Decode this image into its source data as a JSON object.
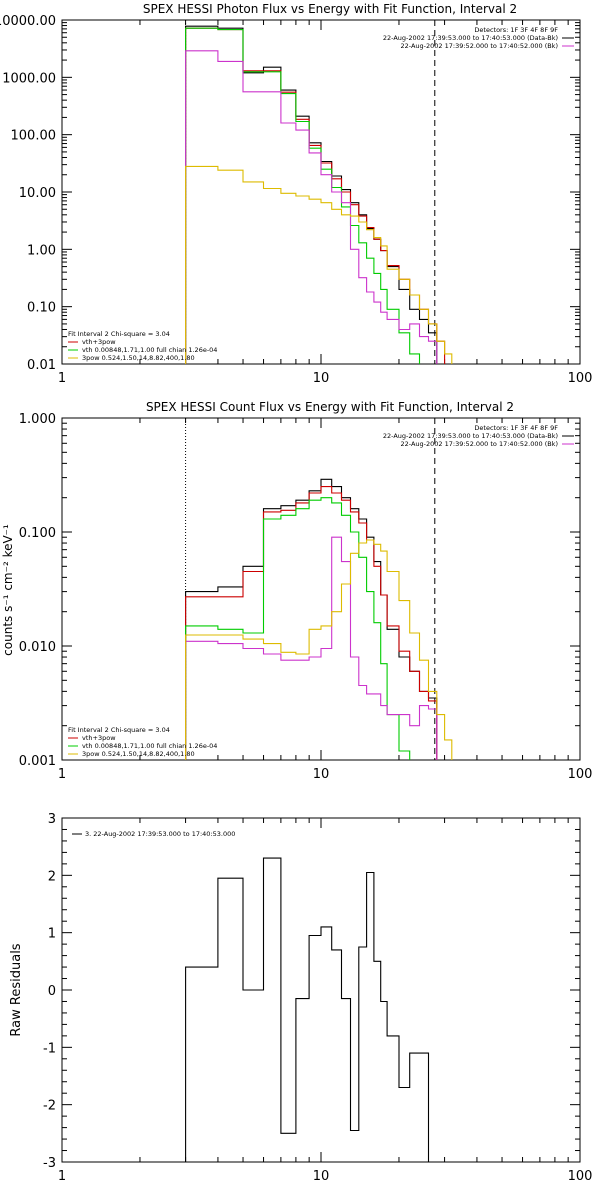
{
  "chart_data": [
    {
      "type": "line",
      "title": "SPEX HESSI Photon Flux vs Energy with Fit Function, Interval 2",
      "xscale": "log",
      "yscale": "log",
      "xlim": [
        1,
        100
      ],
      "ylim": [
        0.01,
        10000
      ],
      "x_ticks": [
        1,
        10,
        100
      ],
      "x_tick_labels": [
        "1",
        "10",
        "100"
      ],
      "y_ticks": [
        0.01,
        0.1,
        1,
        10,
        100,
        1000,
        10000
      ],
      "y_tick_labels": [
        "0.01",
        "0.10",
        "1.00",
        "10.00",
        "100.00",
        "1000.00",
        "10000.00"
      ],
      "vlines": [
        {
          "x": 3.0,
          "style": "dotted"
        },
        {
          "x": 27.5,
          "style": "dashed"
        }
      ],
      "legend_top_right": {
        "lines": [
          {
            "text": "Detectors: 1F 3F 4F 8F 9F",
            "color": ""
          },
          {
            "text": "22-Aug-2002 17:39:53.000 to 17:40:53.000 (Data-Bk)",
            "color": "#000000"
          },
          {
            "text": "22-Aug-2002 17:39:52.000 to 17:40:52.000 (Bk)",
            "color": "#cc33cc"
          }
        ]
      },
      "legend_bottom_left": {
        "header": "Fit Interval 2   Chi-square = 3.04",
        "lines": [
          {
            "text": "vth+3pow",
            "color": "#cc0000"
          },
          {
            "text": "vth 0.00848,1.71,1.00  full chian 1.26e-04",
            "color": "#00cc00"
          },
          {
            "text": "3pow 0.524,1.50,14,8.82,400,1.80",
            "color": "#ddbb00"
          }
        ]
      },
      "series": [
        {
          "role": "data-bk",
          "color": "#000000",
          "edges": [
            3.0,
            4.0,
            5.0,
            6.0,
            7.0,
            8.0,
            9.0,
            10.0,
            11.0,
            12.0,
            13.0,
            14.0,
            15.0,
            16.0,
            17.0,
            18.0,
            20.0,
            22.0,
            24.0,
            26.0,
            28.0
          ],
          "values": [
            7800,
            7200,
            1200,
            1500,
            600,
            210,
            72,
            34,
            19,
            11,
            6.5,
            4.0,
            2.3,
            1.5,
            0.95,
            0.5,
            0.2,
            0.09,
            0.06,
            0.035
          ]
        },
        {
          "role": "fit-total",
          "color": "#cc0000",
          "edges": [
            3.0,
            4.0,
            5.0,
            6.0,
            7.0,
            8.0,
            9.0,
            10.0,
            11.0,
            12.0,
            13.0,
            14.0,
            15.0,
            16.0,
            17.0,
            18.0,
            20.0,
            22.0,
            24.0,
            26.0,
            28.0,
            30.0
          ],
          "values": [
            7200,
            6800,
            1300,
            1300,
            550,
            185,
            65,
            32,
            17,
            10,
            6,
            3.8,
            2.4,
            1.5,
            0.95,
            0.52,
            0.3,
            0.16,
            0.09,
            0.05,
            0.025
          ]
        },
        {
          "role": "thermal",
          "color": "#00cc00",
          "edges": [
            3.0,
            4.0,
            5.0,
            6.0,
            7.0,
            8.0,
            9.0,
            10.0,
            11.0,
            12.0,
            13.0,
            14.0,
            15.0,
            16.0,
            17.0,
            18.0,
            20.0,
            22.0,
            24.0
          ],
          "values": [
            7200,
            6800,
            1250,
            1250,
            520,
            170,
            58,
            25,
            12,
            5.5,
            2.6,
            1.3,
            0.7,
            0.38,
            0.2,
            0.09,
            0.035,
            0.015
          ]
        },
        {
          "role": "background",
          "color": "#cc33cc",
          "edges": [
            3.0,
            4.0,
            5.0,
            6.0,
            7.0,
            8.0,
            9.0,
            10.0,
            11.0,
            12.0,
            13.0,
            14.0,
            15.0,
            16.0,
            17.0,
            18.0,
            20.0,
            22.0,
            24.0,
            26.0,
            28.0
          ],
          "values": [
            2900,
            1900,
            560,
            560,
            160,
            120,
            48,
            20,
            10,
            6.5,
            1.0,
            0.32,
            0.18,
            0.12,
            0.08,
            0.06,
            0.04,
            0.05,
            0.03,
            0.025
          ]
        },
        {
          "role": "powerlaw",
          "color": "#ddbb00",
          "edges": [
            3.0,
            4.0,
            5.0,
            6.0,
            7.0,
            8.0,
            9.0,
            10.0,
            11.0,
            12.0,
            13.0,
            14.0,
            15.0,
            16.0,
            17.0,
            18.0,
            20.0,
            22.0,
            24.0,
            26.0,
            28.0,
            30.0,
            32.0
          ],
          "values": [
            28,
            24,
            15,
            11.5,
            9.5,
            8.5,
            7.5,
            6.5,
            5.0,
            4.0,
            3.8,
            3.0,
            2.2,
            1.6,
            1.15,
            0.45,
            0.3,
            0.16,
            0.09,
            0.05,
            0.025,
            0.015
          ]
        }
      ]
    },
    {
      "type": "line",
      "title": "SPEX HESSI Count Flux vs Energy with Fit Function, Interval 2",
      "ylabel": "counts s⁻¹ cm⁻² keV⁻¹",
      "xscale": "log",
      "yscale": "log",
      "xlim": [
        1,
        100
      ],
      "ylim": [
        0.001,
        1
      ],
      "x_ticks": [
        1,
        10,
        100
      ],
      "x_tick_labels": [
        "1",
        "10",
        "100"
      ],
      "y_ticks": [
        0.001,
        0.01,
        0.1,
        1
      ],
      "y_tick_labels": [
        "0.001",
        "0.010",
        "0.100",
        "1.000"
      ],
      "vlines": [
        {
          "x": 3.0,
          "style": "dotted"
        },
        {
          "x": 27.5,
          "style": "dashed"
        }
      ],
      "legend_top_right": {
        "lines": [
          {
            "text": "Detectors: 1F 3F 4F 8F 9F",
            "color": ""
          },
          {
            "text": "22-Aug-2002 17:39:53.000 to 17:40:53.000 (Data-Bk)",
            "color": "#000000"
          },
          {
            "text": "22-Aug-2002 17:39:52.000 to 17:40:52.000 (Bk)",
            "color": "#cc33cc"
          }
        ]
      },
      "legend_bottom_left": {
        "header": "Fit Interval 2   Chi-square = 3.04",
        "lines": [
          {
            "text": "vth+3pow",
            "color": "#cc0000"
          },
          {
            "text": "vth 0.00848,1.71,1.00  full chian 1.26e-04",
            "color": "#00cc00"
          },
          {
            "text": "3pow 0.524,1.50,14,8.82,400,1.80",
            "color": "#ddbb00"
          }
        ]
      },
      "series": [
        {
          "role": "data-bk",
          "color": "#000000",
          "edges": [
            3.0,
            4.0,
            5.0,
            6.0,
            7.0,
            8.0,
            9.0,
            10.0,
            11.0,
            12.0,
            13.0,
            14.0,
            15.0,
            16.0,
            17.0,
            18.0,
            20.0,
            22.0,
            24.0,
            26.0,
            28.0
          ],
          "values": [
            0.03,
            0.033,
            0.05,
            0.16,
            0.17,
            0.19,
            0.23,
            0.29,
            0.25,
            0.2,
            0.16,
            0.13,
            0.09,
            0.055,
            0.028,
            0.014,
            0.008,
            0.006,
            0.004,
            0.0035
          ]
        },
        {
          "role": "fit-total",
          "color": "#cc0000",
          "edges": [
            3.0,
            4.0,
            5.0,
            6.0,
            7.0,
            8.0,
            9.0,
            10.0,
            11.0,
            12.0,
            13.0,
            14.0,
            15.0,
            16.0,
            17.0,
            18.0,
            20.0,
            22.0,
            24.0,
            26.0,
            28.0
          ],
          "values": [
            0.027,
            0.027,
            0.045,
            0.15,
            0.155,
            0.18,
            0.22,
            0.25,
            0.22,
            0.19,
            0.15,
            0.12,
            0.085,
            0.05,
            0.028,
            0.015,
            0.009,
            0.006,
            0.004,
            0.0033
          ]
        },
        {
          "role": "thermal",
          "color": "#00cc00",
          "edges": [
            3.0,
            4.0,
            5.0,
            6.0,
            7.0,
            8.0,
            9.0,
            10.0,
            11.0,
            12.0,
            13.0,
            14.0,
            15.0,
            16.0,
            17.0,
            18.0,
            20.0,
            22.0
          ],
          "values": [
            0.015,
            0.014,
            0.013,
            0.13,
            0.14,
            0.16,
            0.19,
            0.2,
            0.18,
            0.14,
            0.1,
            0.06,
            0.03,
            0.016,
            0.007,
            0.0025,
            0.0012
          ]
        },
        {
          "role": "background",
          "color": "#cc33cc",
          "edges": [
            3.0,
            4.0,
            5.0,
            6.0,
            7.0,
            8.0,
            9.0,
            10.0,
            11.0,
            12.0,
            13.0,
            14.0,
            15.0,
            16.0,
            17.0,
            18.0,
            20.0,
            22.0,
            24.0,
            26.0,
            28.0
          ],
          "values": [
            0.011,
            0.0105,
            0.0095,
            0.0085,
            0.0075,
            0.0075,
            0.008,
            0.0095,
            0.09,
            0.055,
            0.008,
            0.0045,
            0.0038,
            0.0038,
            0.003,
            0.0025,
            0.0025,
            0.002,
            0.003,
            0.0028
          ]
        },
        {
          "role": "powerlaw",
          "color": "#ddbb00",
          "edges": [
            3.0,
            4.0,
            5.0,
            6.0,
            7.0,
            8.0,
            9.0,
            10.0,
            11.0,
            12.0,
            13.0,
            14.0,
            15.0,
            16.0,
            17.0,
            18.0,
            20.0,
            22.0,
            24.0,
            26.0,
            28.0,
            30.0,
            32.0
          ],
          "values": [
            0.0125,
            0.0125,
            0.0115,
            0.0105,
            0.0088,
            0.0085,
            0.014,
            0.015,
            0.02,
            0.035,
            0.065,
            0.08,
            0.085,
            0.078,
            0.068,
            0.045,
            0.025,
            0.013,
            0.0075,
            0.004,
            0.0025,
            0.0015
          ]
        }
      ]
    },
    {
      "type": "line",
      "title": "",
      "ylabel": "Raw Residuals",
      "xscale": "log",
      "yscale": "linear",
      "xlim": [
        1,
        100
      ],
      "ylim": [
        -3,
        3
      ],
      "x_ticks": [
        1,
        10,
        100
      ],
      "x_tick_labels": [
        "1",
        "10",
        "100"
      ],
      "y_ticks": [
        -3,
        -2,
        -1,
        0,
        1,
        2,
        3
      ],
      "y_tick_labels": [
        "-3",
        "-2",
        "-1",
        "0",
        "1",
        "2",
        "3"
      ],
      "legend_top_left": {
        "lines": [
          {
            "text": "3. 22-Aug-2002 17:39:53.000 to 17:40:53.000",
            "color": "#000000"
          }
        ]
      },
      "series": [
        {
          "role": "residuals",
          "color": "#000000",
          "edges": [
            3.0,
            3.5,
            4.0,
            5.0,
            6.0,
            7.0,
            8.0,
            9.0,
            9.5,
            10.0,
            10.5,
            11.0,
            12.0,
            13.0,
            14.0,
            15.0,
            16.0,
            17.0,
            18.0,
            20.0,
            22.0,
            24.0,
            26.0,
            28.0
          ],
          "values": [
            0.4,
            0.4,
            1.95,
            0.0,
            2.3,
            -2.5,
            -0.15,
            0.95,
            0.95,
            1.1,
            1.1,
            0.7,
            -0.15,
            -2.45,
            0.75,
            2.05,
            0.5,
            -0.2,
            -0.8,
            -1.7,
            -1.1,
            -1.1,
            -3.0
          ]
        }
      ]
    }
  ]
}
